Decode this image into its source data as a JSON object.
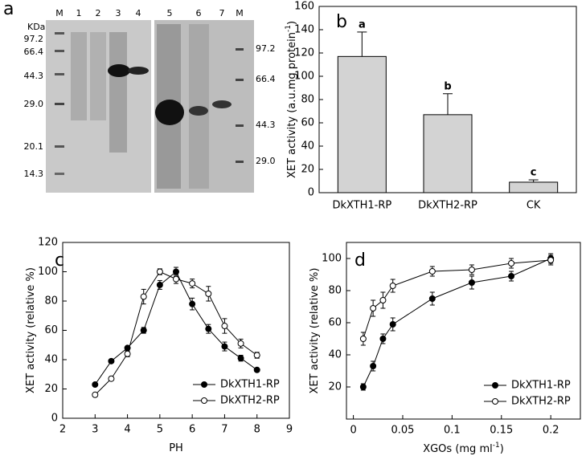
{
  "panels": [
    "a",
    "b",
    "c",
    "d"
  ],
  "gel": {
    "unit": "KDa",
    "lanes": [
      "M",
      "1",
      "2",
      "3",
      "4",
      "5",
      "6",
      "7",
      "M"
    ],
    "left_markers": [
      "97.2",
      "66.4",
      "44.3",
      "29.0",
      "20.1",
      "14.3"
    ],
    "right_markers": [
      "97.2",
      "66.4",
      "44.3",
      "29.0"
    ]
  },
  "chart_data": [
    {
      "type": "bar",
      "y_label": "XET activity (a.u.mg protein",
      "y_label_sup": "-1",
      "y_label_end": ")",
      "categories": [
        "DkXTH1-RP",
        "DkXTH2-RP",
        "CK"
      ],
      "values": [
        117,
        67,
        9
      ],
      "errors": [
        21,
        18,
        2
      ],
      "annotations": [
        "a",
        "b",
        "c"
      ],
      "color": "#d3d3d3",
      "ylim": [
        0,
        160
      ],
      "yticks": [
        0,
        20,
        40,
        60,
        80,
        100,
        120,
        140,
        160
      ]
    },
    {
      "type": "line",
      "x_label": "PH",
      "y_label": "XET activity  (relative %)",
      "x": [
        3,
        3.5,
        4,
        4.5,
        5,
        5.5,
        6,
        6.5,
        7,
        7.5,
        8
      ],
      "series": [
        {
          "name": "DkXTH1-RP",
          "color": "#000000",
          "marker": "filled",
          "values": [
            23,
            39,
            48,
            60,
            91,
            100,
            78,
            61,
            49,
            41,
            33
          ],
          "errors": [
            1,
            1,
            1,
            2,
            3,
            3,
            4,
            3,
            3,
            2,
            1
          ]
        },
        {
          "name": "DkXTH2-RP",
          "color": "#000000",
          "marker": "open",
          "values": [
            16,
            27,
            44,
            83,
            100,
            95,
            92,
            85,
            63,
            51,
            43
          ],
          "errors": [
            1,
            1,
            2,
            5,
            2,
            3,
            3,
            5,
            5,
            3,
            2
          ]
        }
      ],
      "xlim": [
        2,
        9
      ],
      "xticks": [
        2,
        3,
        4,
        5,
        6,
        7,
        8,
        9
      ],
      "ylim": [
        0,
        120
      ],
      "yticks": [
        0,
        20,
        40,
        60,
        80,
        100,
        120
      ],
      "legend": "lower-right"
    },
    {
      "type": "line",
      "x_label": "XGOs  (mg ml",
      "x_label_sup": "-1",
      "x_label_end": ")",
      "y_label": "XET activity  (relative %)",
      "x": [
        0.01,
        0.02,
        0.03,
        0.04,
        0.08,
        0.12,
        0.16,
        0.2
      ],
      "series": [
        {
          "name": "DkXTH1-RP",
          "color": "#000000",
          "marker": "filled",
          "values": [
            20,
            33,
            50,
            59,
            75,
            85,
            89,
            100
          ],
          "errors": [
            2,
            3,
            3,
            4,
            4,
            4,
            3,
            3
          ]
        },
        {
          "name": "DkXTH2-RP",
          "color": "#000000",
          "marker": "open",
          "values": [
            50,
            69,
            74,
            83,
            92,
            93,
            97,
            99
          ],
          "errors": [
            4,
            5,
            5,
            4,
            3,
            3,
            3,
            3
          ]
        }
      ],
      "xlim": [
        -0.007,
        0.23
      ],
      "xticks": [
        0,
        0.05,
        0.1,
        0.15,
        0.2
      ],
      "ylim": [
        0,
        110
      ],
      "yticks": [
        20,
        40,
        60,
        80,
        100
      ],
      "legend": "lower-right"
    }
  ]
}
